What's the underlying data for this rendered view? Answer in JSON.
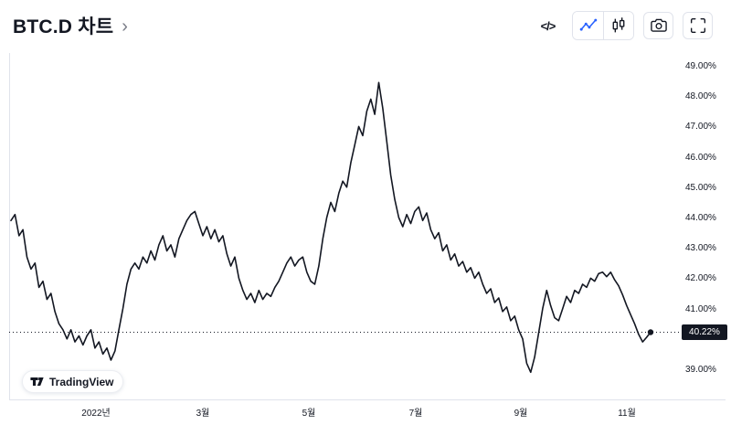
{
  "header": {
    "title": "BTC.D 차트",
    "title_chevron": "›"
  },
  "toolbar": {
    "code_glyph": "</>",
    "buttons": [
      {
        "name": "embed-code",
        "icon": "code-icon"
      },
      {
        "name": "line-chart-style",
        "icon": "line-chart-icon",
        "active": true,
        "active_color": "#2962ff"
      },
      {
        "name": "candlestick-style",
        "icon": "candlestick-icon"
      },
      {
        "name": "snapshot",
        "icon": "camera-icon"
      },
      {
        "name": "fullscreen",
        "icon": "fullscreen-icon"
      }
    ]
  },
  "watermark": {
    "label": "TradingView"
  },
  "chart_data": {
    "type": "line",
    "symbol": "BTC.D",
    "line_color": "#131722",
    "axis_line_color": "#e0e3eb",
    "accent_color": "#2962ff",
    "last_value": 40.22,
    "last_value_label": "40.22%",
    "ylim": [
      38.6,
      49.4
    ],
    "legend_position": "none",
    "grid": "off",
    "y_axis": {
      "ticks": [
        "49.00%",
        "48.00%",
        "47.00%",
        "46.00%",
        "45.00%",
        "44.00%",
        "43.00%",
        "42.00%",
        "41.00%",
        "39.00%"
      ],
      "tick_values": [
        49,
        48,
        47,
        46,
        45,
        44,
        43,
        42,
        41,
        39
      ]
    },
    "x_axis": {
      "ticks": [
        "2022년",
        "3월",
        "5월",
        "7월",
        "9월",
        "11월"
      ]
    },
    "values": [
      43.9,
      44.1,
      43.4,
      43.6,
      42.7,
      42.3,
      42.5,
      41.7,
      41.9,
      41.3,
      41.5,
      40.9,
      40.5,
      40.3,
      40.0,
      40.3,
      39.9,
      40.1,
      39.8,
      40.1,
      40.3,
      39.7,
      39.9,
      39.5,
      39.7,
      39.3,
      39.6,
      40.3,
      41.0,
      41.8,
      42.3,
      42.5,
      42.3,
      42.7,
      42.5,
      42.9,
      42.6,
      43.1,
      43.4,
      42.9,
      43.1,
      42.7,
      43.3,
      43.6,
      43.9,
      44.1,
      44.2,
      43.8,
      43.4,
      43.7,
      43.3,
      43.6,
      43.2,
      43.4,
      42.8,
      42.4,
      42.7,
      42.0,
      41.6,
      41.3,
      41.5,
      41.2,
      41.6,
      41.3,
      41.5,
      41.4,
      41.7,
      41.9,
      42.2,
      42.5,
      42.7,
      42.4,
      42.6,
      42.7,
      42.2,
      41.9,
      41.8,
      42.4,
      43.3,
      44.0,
      44.5,
      44.2,
      44.8,
      45.2,
      45.0,
      45.8,
      46.4,
      47.0,
      46.7,
      47.5,
      47.9,
      47.4,
      48.45,
      47.6,
      46.5,
      45.4,
      44.6,
      44.0,
      43.7,
      44.1,
      43.8,
      44.2,
      44.35,
      43.9,
      44.15,
      43.6,
      43.3,
      43.5,
      42.9,
      43.1,
      42.6,
      42.8,
      42.4,
      42.55,
      42.2,
      42.35,
      42.0,
      42.2,
      41.8,
      41.5,
      41.65,
      41.2,
      41.35,
      40.9,
      41.05,
      40.6,
      40.75,
      40.3,
      40.0,
      39.2,
      38.9,
      39.4,
      40.2,
      41.0,
      41.6,
      41.1,
      40.7,
      40.6,
      41.0,
      41.4,
      41.2,
      41.6,
      41.5,
      41.8,
      41.7,
      42.0,
      41.9,
      42.15,
      42.2,
      42.05,
      42.2,
      41.95,
      41.75,
      41.45,
      41.1,
      40.8,
      40.5,
      40.15,
      39.9,
      40.05,
      40.22
    ]
  }
}
